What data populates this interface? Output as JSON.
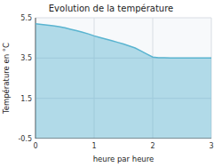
{
  "chart_data": {
    "type": "area",
    "title": "Evolution de la température",
    "x_label": "heure par heure",
    "y_label": "Température en °C",
    "x": [
      0,
      0.1,
      0.2,
      0.3,
      0.4,
      0.5,
      0.6,
      0.7,
      0.8,
      0.9,
      1.0,
      1.1,
      1.2,
      1.3,
      1.4,
      1.5,
      1.6,
      1.7,
      1.8,
      1.9,
      2.0,
      2.1,
      2.2,
      2.3,
      2.4,
      2.5,
      2.6,
      2.7,
      2.8,
      2.9,
      3.0
    ],
    "values": [
      5.2,
      5.17,
      5.14,
      5.1,
      5.06,
      5.0,
      4.93,
      4.86,
      4.78,
      4.7,
      4.6,
      4.52,
      4.44,
      4.36,
      4.28,
      4.2,
      4.1,
      4.0,
      3.85,
      3.7,
      3.55,
      3.52,
      3.51,
      3.5,
      3.5,
      3.5,
      3.5,
      3.5,
      3.5,
      3.5,
      3.5
    ],
    "baseline": -0.5,
    "color": "#5ab4d0",
    "xlim": [
      0,
      3
    ],
    "ylim": [
      -0.5,
      5.5
    ],
    "xticks": [
      0,
      1,
      2,
      3
    ],
    "yticks": [
      -0.5,
      1.5,
      3.5,
      5.5
    ],
    "grid": true
  }
}
